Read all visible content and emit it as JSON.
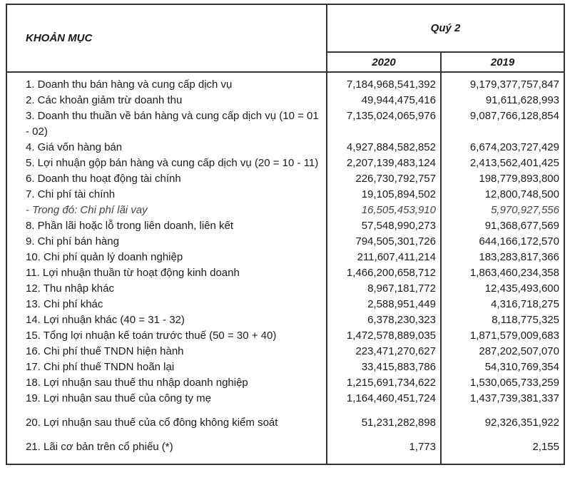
{
  "header": {
    "title": "KHOẢN MỤC",
    "period": "Quý 2",
    "years": [
      "2020",
      "2019"
    ]
  },
  "table": {
    "rows": [
      [
        "1. Doanh thu bán hàng và cung cấp dịch vụ",
        "7,184,968,541,392",
        "9,179,377,757,847"
      ],
      [
        "2. Các khoản giảm trừ doanh thu",
        "49,944,475,416",
        "91,611,628,993"
      ],
      [
        "3. Doanh thu thuần về bán hàng và cung cấp dịch vụ (10 = 01 - 02)",
        "7,135,024,065,976",
        "9,087,766,128,854"
      ],
      [
        "4. Giá vốn hàng bán",
        "4,927,884,582,852",
        "6,674,203,727,429"
      ],
      [
        "5. Lợi nhuận gộp bán hàng và cung cấp dịch vụ (20 = 10 - 11)",
        "2,207,139,483,124",
        "2,413,562,401,425"
      ],
      [
        "6. Doanh thu hoạt động tài chính",
        "226,730,792,757",
        "198,779,893,800"
      ],
      [
        "7. Chi phí tài chính",
        "19,105,894,502",
        "12,800,748,500"
      ],
      [
        "- Trong đó: Chi phí lãi vay",
        "16,505,453,910",
        "5,970,927,556"
      ],
      [
        "8. Phần lãi hoặc lỗ trong liên doanh, liên kết",
        "57,548,990,273",
        "91,368,677,569"
      ],
      [
        "9. Chi phí bán hàng",
        "794,505,301,726",
        "644,166,172,570"
      ],
      [
        "10. Chi phí quản lý doanh nghiệp",
        "211,607,411,214",
        "183,283,817,366"
      ],
      [
        "11. Lợi nhuận thuần từ hoạt động kinh doanh",
        "1,466,200,658,712",
        "1,863,460,234,358"
      ],
      [
        "12. Thu nhập khác",
        "8,967,181,772",
        "12,435,493,600"
      ],
      [
        "13. Chi phí khác",
        "2,588,951,449",
        "4,316,718,275"
      ],
      [
        "14. Lợi nhuận khác (40 = 31 - 32)",
        "6,378,230,323",
        "8,118,775,325"
      ],
      [
        "15. Tổng lợi nhuận kế toán trước thuế (50 = 30 + 40)",
        "1,472,578,889,035",
        "1,871,579,009,683"
      ],
      [
        "16. Chi phí thuế TNDN hiện hành",
        "223,471,270,627",
        "287,202,507,070"
      ],
      [
        "17. Chi phí thuế TNDN hoãn lại",
        "33,415,883,786",
        "54,310,769,354"
      ],
      [
        "18. Lợi nhuận sau thuế thu nhập doanh nghiệp",
        "1,215,691,734,622",
        "1,530,065,733,259"
      ],
      [
        "19. Lợi nhuận sau thuế của công ty mẹ",
        "1,164,460,451,724",
        "1,437,739,381,337"
      ],
      [
        "20. Lợi nhuận sau thuế của cổ đông không kiểm soát",
        "51,231,282,898",
        "92,326,351,922"
      ],
      [
        "21. Lãi cơ bản trên cổ phiếu (*)",
        "1,773",
        "2,155"
      ]
    ]
  }
}
